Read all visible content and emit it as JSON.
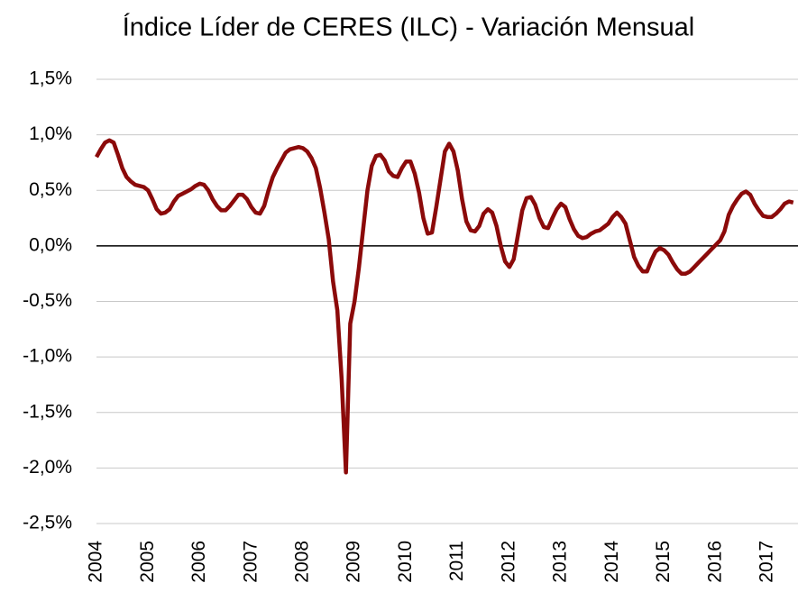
{
  "chart_data": {
    "type": "line",
    "title": "Índice Líder de CERES (ILC) - Variación Mensual",
    "categories": [
      "2004",
      null,
      null,
      null,
      null,
      null,
      null,
      null,
      null,
      null,
      null,
      null,
      "2005",
      null,
      null,
      null,
      null,
      null,
      null,
      null,
      null,
      null,
      null,
      null,
      "2006",
      null,
      null,
      null,
      null,
      null,
      null,
      null,
      null,
      null,
      null,
      null,
      "2007",
      null,
      null,
      null,
      null,
      null,
      null,
      null,
      null,
      null,
      null,
      null,
      "2008",
      null,
      null,
      null,
      null,
      null,
      null,
      null,
      null,
      null,
      null,
      null,
      "2009",
      null,
      null,
      null,
      null,
      null,
      null,
      null,
      null,
      null,
      null,
      null,
      "2010",
      null,
      null,
      null,
      null,
      null,
      null,
      null,
      null,
      null,
      null,
      null,
      "2011",
      null,
      null,
      null,
      null,
      null,
      null,
      null,
      null,
      null,
      null,
      null,
      "2012",
      null,
      null,
      null,
      null,
      null,
      null,
      null,
      null,
      null,
      null,
      null,
      "2013",
      null,
      null,
      null,
      null,
      null,
      null,
      null,
      null,
      null,
      null,
      null,
      "2014",
      null,
      null,
      null,
      null,
      null,
      null,
      null,
      null,
      null,
      null,
      null,
      "2015",
      null,
      null,
      null,
      null,
      null,
      null,
      null,
      null,
      null,
      null,
      null,
      "2016",
      null,
      null,
      null,
      null,
      null,
      null,
      null,
      null,
      null,
      null,
      null,
      "2017",
      null,
      null,
      null,
      null,
      null,
      null
    ],
    "series": [
      {
        "color": "#8b0a0a",
        "values": [
          0.8,
          0.87,
          0.93,
          0.95,
          0.93,
          0.82,
          0.7,
          0.62,
          0.58,
          0.55,
          0.54,
          0.53,
          0.5,
          0.42,
          0.33,
          0.29,
          0.3,
          0.33,
          0.4,
          0.45,
          0.47,
          0.49,
          0.51,
          0.54,
          0.56,
          0.55,
          0.5,
          0.42,
          0.36,
          0.32,
          0.32,
          0.36,
          0.41,
          0.46,
          0.46,
          0.42,
          0.35,
          0.3,
          0.29,
          0.36,
          0.5,
          0.62,
          0.7,
          0.77,
          0.84,
          0.87,
          0.88,
          0.89,
          0.88,
          0.85,
          0.79,
          0.7,
          0.52,
          0.3,
          0.06,
          -0.32,
          -0.58,
          -1.2,
          -2.04,
          -0.7,
          -0.5,
          -0.2,
          0.15,
          0.5,
          0.72,
          0.81,
          0.82,
          0.77,
          0.67,
          0.63,
          0.62,
          0.7,
          0.76,
          0.76,
          0.65,
          0.48,
          0.25,
          0.11,
          0.12,
          0.35,
          0.6,
          0.85,
          0.92,
          0.85,
          0.68,
          0.42,
          0.22,
          0.14,
          0.13,
          0.18,
          0.29,
          0.33,
          0.3,
          0.18,
          0.0,
          -0.14,
          -0.19,
          -0.12,
          0.1,
          0.32,
          0.43,
          0.44,
          0.37,
          0.25,
          0.17,
          0.16,
          0.25,
          0.33,
          0.38,
          0.35,
          0.24,
          0.15,
          0.09,
          0.07,
          0.08,
          0.11,
          0.13,
          0.14,
          0.17,
          0.2,
          0.26,
          0.3,
          0.26,
          0.2,
          0.05,
          -0.1,
          -0.18,
          -0.23,
          -0.23,
          -0.13,
          -0.05,
          -0.02,
          -0.04,
          -0.08,
          -0.15,
          -0.21,
          -0.25,
          -0.25,
          -0.23,
          -0.19,
          -0.15,
          -0.11,
          -0.07,
          -0.03,
          0.01,
          0.05,
          0.13,
          0.28,
          0.36,
          0.42,
          0.47,
          0.49,
          0.46,
          0.38,
          0.32,
          0.27,
          0.26,
          0.26,
          0.29,
          0.33,
          0.38,
          0.4,
          0.39
        ]
      }
    ],
    "ylim": [
      -2.5,
      1.5
    ],
    "yticks": [
      {
        "value": -2.5,
        "label": "-2,5%"
      },
      {
        "value": -2.0,
        "label": "-2,0%"
      },
      {
        "value": -1.5,
        "label": "-1,5%"
      },
      {
        "value": -1.0,
        "label": "-1,0%"
      },
      {
        "value": -0.5,
        "label": "-0,5%"
      },
      {
        "value": 0,
        "label": "0,0%"
      },
      {
        "value": 0.5,
        "label": "0,5%"
      },
      {
        "value": 1.0,
        "label": "1,0%"
      },
      {
        "value": 1.5,
        "label": "1,5%"
      }
    ],
    "grid": true
  }
}
